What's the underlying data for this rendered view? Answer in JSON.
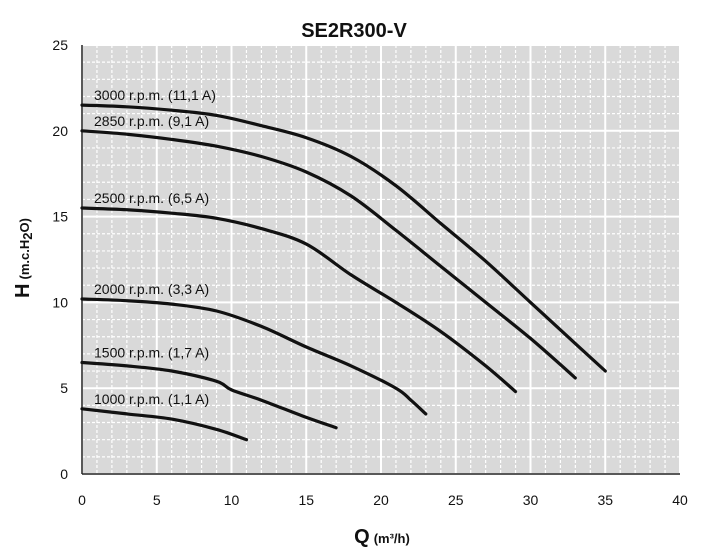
{
  "chart_data": {
    "type": "line",
    "title": "SE2R300-V",
    "xlabel": {
      "main": "Q",
      "unit": "(m³/h)"
    },
    "ylabel": {
      "main": "H",
      "unit_pre": "(m.c.H",
      "unit_sub1": "2",
      "unit_post": "O)"
    },
    "xlim": [
      0,
      40
    ],
    "ylim": [
      0,
      25
    ],
    "xticks": [
      0,
      5,
      10,
      15,
      20,
      25,
      30,
      35,
      40
    ],
    "yticks": [
      0,
      5,
      10,
      15,
      20,
      25
    ],
    "grid": true,
    "minor_grid": {
      "x": 1,
      "y": 1
    },
    "series": [
      {
        "name": "3000 r.p.m. (11,1 A)",
        "x": [
          0,
          3,
          6,
          9,
          12,
          15,
          18,
          21,
          24,
          27,
          30,
          33,
          35
        ],
        "y": [
          21.5,
          21.4,
          21.2,
          20.9,
          20.3,
          19.6,
          18.5,
          16.8,
          14.6,
          12.4,
          10.0,
          7.6,
          6.0
        ]
      },
      {
        "name": "2850 r.p.m. (9,1 A)",
        "x": [
          0,
          3,
          6,
          9,
          12,
          15,
          18,
          21,
          24,
          27,
          30,
          33
        ],
        "y": [
          20.0,
          19.8,
          19.5,
          19.1,
          18.5,
          17.6,
          16.2,
          14.2,
          12.1,
          10.0,
          7.9,
          5.6
        ]
      },
      {
        "name": "2500 r.p.m. (6,5 A)",
        "x": [
          0,
          3,
          6,
          9,
          12,
          15,
          18,
          21,
          24,
          27,
          29
        ],
        "y": [
          15.5,
          15.4,
          15.2,
          14.9,
          14.3,
          13.4,
          11.6,
          10.0,
          8.3,
          6.3,
          4.8
        ]
      },
      {
        "name": "2000 r.p.m. (3,3 A)",
        "x": [
          0,
          3,
          6,
          9,
          12,
          15,
          18,
          21,
          22,
          23
        ],
        "y": [
          10.2,
          10.1,
          9.9,
          9.5,
          8.6,
          7.4,
          6.3,
          5.0,
          4.3,
          3.5
        ]
      },
      {
        "name": "1500 r.p.m. (1,7 A)",
        "x": [
          0,
          3,
          6,
          9,
          10,
          12,
          15,
          17
        ],
        "y": [
          6.5,
          6.3,
          6.0,
          5.4,
          4.9,
          4.3,
          3.3,
          2.7
        ]
      },
      {
        "name": "1000 r.p.m. (1,1 A)",
        "x": [
          0,
          3,
          6,
          9,
          11
        ],
        "y": [
          3.8,
          3.5,
          3.2,
          2.6,
          2.0
        ]
      }
    ]
  }
}
